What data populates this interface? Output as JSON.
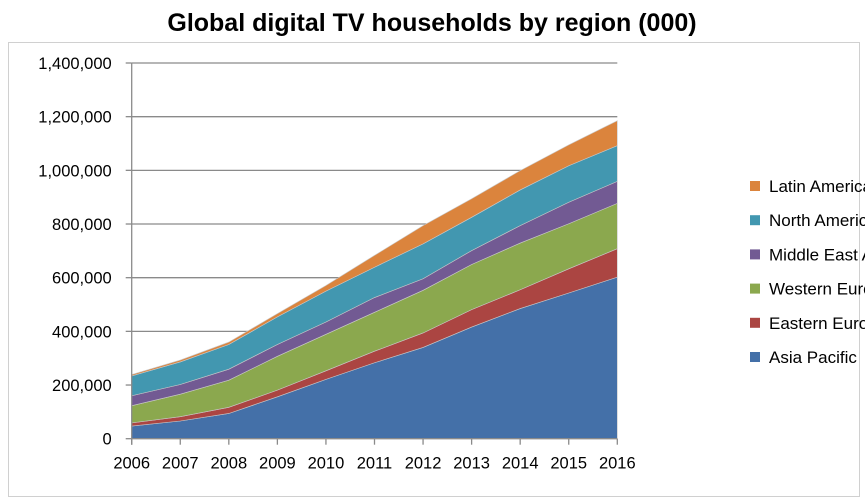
{
  "chart_data": {
    "type": "area",
    "stacked": true,
    "title": "Global digital TV households by region (000)",
    "xlabel": "",
    "ylabel": "",
    "x": [
      "2006",
      "2007",
      "2008",
      "2009",
      "2010",
      "2011",
      "2012",
      "2013",
      "2014",
      "2015",
      "2016"
    ],
    "ylim": [
      0,
      1400000
    ],
    "yticks": [
      "0",
      "200,000",
      "400,000",
      "600,000",
      "800,000",
      "1,000,000",
      "1,200,000",
      "1,400,000"
    ],
    "ytick_values": [
      0,
      200000,
      400000,
      600000,
      800000,
      1000000,
      1200000,
      1400000
    ],
    "grid": "horizontal major",
    "legend": "right",
    "series": [
      {
        "name": "Asia Pacific",
        "color": "#4470A8",
        "values": [
          47000,
          66000,
          94000,
          156000,
          221000,
          283000,
          340000,
          416000,
          485000,
          543000,
          602000
        ]
      },
      {
        "name": "Eastern Europe",
        "color": "#AB4542",
        "values": [
          12000,
          16000,
          23000,
          25000,
          32000,
          43000,
          54000,
          65000,
          70000,
          90000,
          106000
        ]
      },
      {
        "name": "Western Europe",
        "color": "#8BA84E",
        "values": [
          64000,
          84000,
          101000,
          126000,
          136000,
          145000,
          159000,
          168000,
          174000,
          168000,
          169000
        ]
      },
      {
        "name": "Middle East Africa",
        "color": "#725A93",
        "values": [
          37000,
          36000,
          41000,
          44000,
          46000,
          55000,
          43000,
          52000,
          65000,
          80000,
          82000
        ]
      },
      {
        "name": "North America",
        "color": "#4297B0",
        "values": [
          74000,
          84000,
          92000,
          103000,
          115000,
          113000,
          130000,
          124000,
          133000,
          136000,
          133000
        ]
      },
      {
        "name": "Latin America",
        "color": "#DB843D",
        "values": [
          5000,
          7000,
          9000,
          12000,
          21000,
          44000,
          68000,
          69000,
          72000,
          78000,
          93000
        ]
      }
    ]
  }
}
